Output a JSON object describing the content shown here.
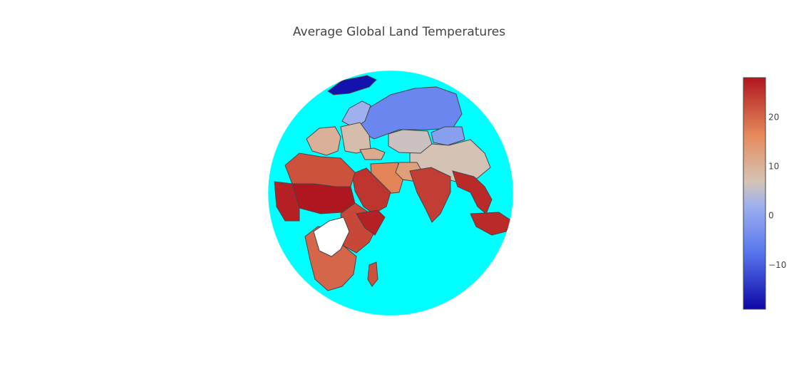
{
  "chart_data": {
    "type": "choropleth",
    "title": "Average Global Land Temperatures",
    "projection": "orthographic",
    "ocean_color": "#00ffff",
    "border_color": "#444444",
    "missing_color": "#ffffff",
    "colorscale": [
      {
        "t": 0.0,
        "color": "#0c08a8"
      },
      {
        "t": 0.25,
        "color": "#5a78ee"
      },
      {
        "t": 0.45,
        "color": "#9fb1ee"
      },
      {
        "t": 0.55,
        "color": "#d4c4b6"
      },
      {
        "t": 0.75,
        "color": "#e68b5c"
      },
      {
        "t": 1.0,
        "color": "#b0161f"
      }
    ],
    "colorbar": {
      "min": -19,
      "max": 28,
      "tick_values": [
        -10,
        0,
        10,
        20
      ],
      "tick_labels": [
        "−10",
        "0",
        "10",
        "20"
      ]
    },
    "regions": [
      {
        "name": "Greenland",
        "value": -18
      },
      {
        "name": "Russia",
        "value": -5
      },
      {
        "name": "Mongolia",
        "value": -1
      },
      {
        "name": "Scandinavia",
        "value": 2
      },
      {
        "name": "China",
        "value": 7
      },
      {
        "name": "Kazakhstan",
        "value": 6
      },
      {
        "name": "Western Europe",
        "value": 10
      },
      {
        "name": "Eastern Europe",
        "value": 8
      },
      {
        "name": "Turkey",
        "value": 11
      },
      {
        "name": "Iran",
        "value": 17
      },
      {
        "name": "Afghanistan",
        "value": 13
      },
      {
        "name": "India",
        "value": 24
      },
      {
        "name": "Southeast Asia",
        "value": 26
      },
      {
        "name": "Arabian Peninsula",
        "value": 25
      },
      {
        "name": "North Africa",
        "value": 22
      },
      {
        "name": "Sahel",
        "value": 28
      },
      {
        "name": "West Africa",
        "value": 27
      },
      {
        "name": "East Africa",
        "value": 23
      },
      {
        "name": "Southern Africa",
        "value": 20
      },
      {
        "name": "Madagascar",
        "value": 22
      },
      {
        "name": "Indonesia",
        "value": 26
      },
      {
        "name": "Somalia",
        "value": 27
      }
    ]
  }
}
